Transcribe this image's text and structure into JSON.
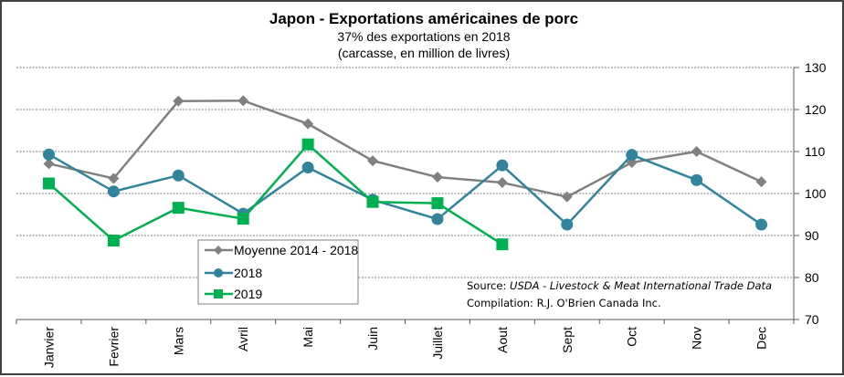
{
  "chart_data": {
    "type": "line",
    "title": "Japon - Exportations américaines de porc",
    "subtitle_lines": [
      "37% des exportations en 2018",
      "(carcasse, en million de livres)"
    ],
    "xlabel": "",
    "ylabel": "",
    "categories": [
      "Janvier",
      "Fevrier",
      "Mars",
      "Avril",
      "Mai",
      "Juin",
      "Juillet",
      "Aout",
      "Sept",
      "Oct",
      "Nov",
      "Dec"
    ],
    "ylim": [
      70,
      130
    ],
    "yticks": [
      70,
      80,
      90,
      100,
      110,
      120,
      130
    ],
    "y_axis_side": "right",
    "grid": true,
    "legend_position": "bottom-left-center",
    "series": [
      {
        "name": "Moyenne 2014 - 2018",
        "color": "#808080",
        "marker": "diamond",
        "values": [
          107.1,
          103.6,
          122.0,
          122.1,
          116.6,
          107.8,
          103.9,
          102.6,
          99.2,
          107.4,
          110.0,
          102.8
        ]
      },
      {
        "name": "2018",
        "color": "#31849B",
        "marker": "circle",
        "values": [
          109.3,
          100.5,
          104.3,
          95.2,
          106.2,
          98.5,
          93.9,
          106.7,
          92.6,
          109.2,
          103.2,
          92.6
        ]
      },
      {
        "name": "2019",
        "color": "#00B050",
        "marker": "square",
        "values": [
          102.4,
          88.8,
          96.6,
          94.0,
          111.7,
          98.0,
          97.7,
          87.9,
          null,
          null,
          null,
          null
        ]
      }
    ],
    "annotations": {
      "source_label": "Source: ",
      "source_value": "USDA - Livestock & Meat International Trade Data",
      "compilation": "Compilation: R.J. O'Brien Canada Inc."
    }
  }
}
